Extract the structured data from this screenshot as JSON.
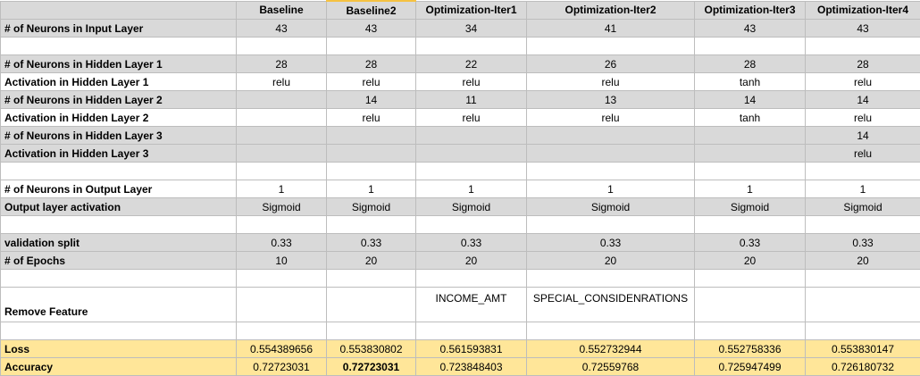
{
  "columns": [
    "Baseline",
    "Baseline2",
    "Optimization-Iter1",
    "Optimization-Iter2",
    "Optimization-Iter3",
    "Optimization-Iter4"
  ],
  "rows": [
    {
      "label": "# of Neurons in Input Layer",
      "style": "gray",
      "values": [
        "43",
        "43",
        "34",
        "41",
        "43",
        "43"
      ]
    },
    {
      "label": "",
      "style": "white",
      "values": [
        "",
        "",
        "",
        "",
        "",
        ""
      ]
    },
    {
      "label": "# of Neurons in Hidden Layer 1",
      "style": "gray",
      "values": [
        "28",
        "28",
        "22",
        "26",
        "28",
        "28"
      ]
    },
    {
      "label": "Activation in Hidden Layer 1",
      "style": "white",
      "values": [
        "relu",
        "relu",
        "relu",
        "relu",
        "tanh",
        "relu"
      ]
    },
    {
      "label": "# of Neurons in Hidden Layer 2",
      "style": "gray",
      "values": [
        "",
        "14",
        "11",
        "13",
        "14",
        "14"
      ]
    },
    {
      "label": "Activation in Hidden Layer 2",
      "style": "white",
      "values": [
        "",
        "relu",
        "relu",
        "relu",
        "tanh",
        "relu"
      ]
    },
    {
      "label": "# of Neurons in Hidden Layer 3",
      "style": "gray",
      "values": [
        "",
        "",
        "",
        "",
        "",
        "14"
      ]
    },
    {
      "label": "Activation in Hidden Layer 3",
      "style": "gray",
      "values": [
        "",
        "",
        "",
        "",
        "",
        "relu"
      ]
    },
    {
      "label": "",
      "style": "white",
      "values": [
        "",
        "",
        "",
        "",
        "",
        ""
      ]
    },
    {
      "label": "# of Neurons in Output Layer",
      "style": "white",
      "values": [
        "1",
        "1",
        "1",
        "1",
        "1",
        "1"
      ]
    },
    {
      "label": "Output layer activation",
      "style": "gray",
      "values": [
        "Sigmoid",
        "Sigmoid",
        "Sigmoid",
        "Sigmoid",
        "Sigmoid",
        "Sigmoid"
      ]
    },
    {
      "label": "",
      "style": "white",
      "values": [
        "",
        "",
        "",
        "",
        "",
        ""
      ]
    },
    {
      "label": "validation split",
      "style": "gray",
      "values": [
        "0.33",
        "0.33",
        "0.33",
        "0.33",
        "0.33",
        "0.33"
      ]
    },
    {
      "label": "# of Epochs",
      "style": "gray",
      "values": [
        "10",
        "20",
        "20",
        "20",
        "20",
        "20"
      ]
    },
    {
      "label": "",
      "style": "white",
      "values": [
        "",
        "",
        "",
        "",
        "",
        ""
      ]
    },
    {
      "label": "Remove Feature",
      "style": "white-tall",
      "values": [
        "",
        "",
        "INCOME_AMT",
        "SPECIAL_CONSIDENRATIONS",
        "",
        ""
      ]
    },
    {
      "label": "",
      "style": "white",
      "values": [
        "",
        "",
        "",
        "",
        "",
        ""
      ]
    },
    {
      "label": "Loss",
      "style": "yellow",
      "values": [
        "0.554389656",
        "0.553830802",
        "0.561593831",
        "0.552732944",
        "0.552758336",
        "0.553830147"
      ]
    },
    {
      "label": "Accuracy",
      "style": "yellow",
      "values": [
        "0.72723031",
        "0.72723031",
        "0.723848403",
        "0.72559768",
        "0.725947499",
        "0.726180732"
      ]
    }
  ]
}
